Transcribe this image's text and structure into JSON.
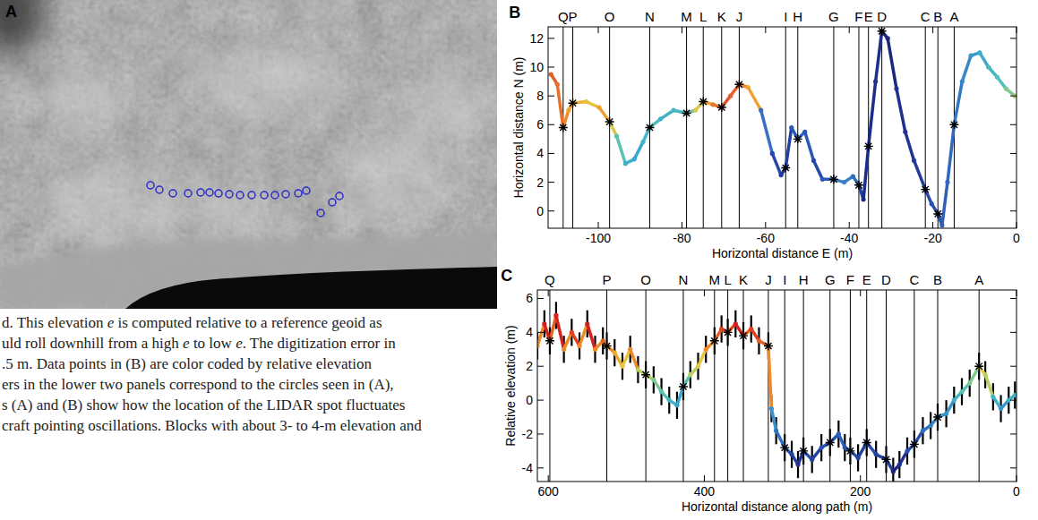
{
  "panel_a": {
    "panel_label": "A"
  },
  "caption": {
    "lines": [
      "d. This elevation e is computed relative to a reference geoid as",
      "uld roll downhill from a high e to low e. The digitization error in",
      ".5 m. Data points in (B) are color coded by relative elevation",
      "ers in the lower two panels correspond to the circles seen in (A),",
      "s (A) and (B) show how the location of the LIDAR spot fluctuates",
      "craft pointing oscillations. Blocks with about 3- to 4-m elevation and"
    ]
  },
  "chart_data": [
    {
      "type": "line",
      "panel_label": "B",
      "x_label": "Horizontal distance E (m)",
      "y_label": "Horizontal distance N (m)",
      "xlim": [
        -112,
        0
      ],
      "ylim": [
        -1.2,
        12.8
      ],
      "xticks": [
        -100,
        -80,
        -60,
        -40,
        -20,
        0
      ],
      "yticks": [
        0,
        2,
        4,
        6,
        8,
        10,
        12
      ],
      "reference_lines": {
        "x": [
          -108.4,
          -106.1,
          -97.3,
          -87.7,
          -78.9,
          -74.9,
          -70.5,
          -66.3,
          -55.2,
          -52.3,
          -43.7,
          -37.7,
          -35.4,
          -32.2,
          -21.8,
          -18.8,
          -14.9
        ],
        "labels": [
          "Q",
          "P",
          "O",
          "N",
          "M",
          "L",
          "K",
          "J",
          "I",
          "H",
          "G",
          "F",
          "E",
          "D",
          "C",
          "B",
          "A"
        ]
      },
      "series": [
        {
          "type": "line",
          "x": [
            -111.3,
            -109.8,
            -108.4,
            -107.1,
            -106.1,
            -102.9,
            -99.8,
            -97.3,
            -95.6,
            -93.5,
            -91.4,
            -89.3,
            -87.7,
            -85.1,
            -82,
            -78.9,
            -76.8,
            -74.9,
            -72.6,
            -70.5,
            -68.4,
            -66.3,
            -64.2,
            -61.1,
            -58.4,
            -56.3,
            -55.2,
            -53.8,
            -52.3,
            -50.6,
            -48.5,
            -46.4,
            -43.7,
            -41.2,
            -39.1,
            -37.7,
            -36.6,
            -35.4,
            -33.7,
            -32.2,
            -30.8,
            -28.7,
            -26.6,
            -24.5,
            -21.8,
            -20.3,
            -18.8,
            -17.8,
            -16.5,
            -14.9,
            -13,
            -10.9,
            -8.8,
            -6.7,
            -4.6,
            -2.5,
            -0.4
          ],
          "values": [
            9.5,
            8.8,
            5.8,
            7.0,
            7.5,
            7.6,
            7.2,
            6.2,
            5.2,
            3.3,
            3.6,
            4.8,
            5.8,
            6.4,
            7.0,
            6.8,
            7.0,
            7.6,
            7.4,
            7.2,
            8.0,
            8.8,
            8.6,
            7.0,
            4.0,
            2.5,
            3.0,
            5.8,
            5.0,
            5.5,
            3.5,
            2.2,
            2.2,
            2.0,
            2.4,
            1.8,
            0.8,
            4.5,
            9.0,
            12.5,
            12.0,
            8.5,
            5.5,
            3.5,
            1.5,
            0.5,
            -0.2,
            -1.0,
            2.0,
            6.0,
            9.0,
            10.8,
            11.0,
            10.0,
            9.3,
            8.5,
            8.0
          ],
          "colors": [
            "#e0602a",
            "#e8702a",
            "#f08a2a",
            "#f0a030",
            "#f0b030",
            "#e8c040",
            "#f0a030",
            "#d8c850",
            "#60c0b0",
            "#40b0c8",
            "#38a8d0",
            "#40b8c8",
            "#48c0c0",
            "#40b0c8",
            "#48b8c0",
            "#60c0b0",
            "#d8c850",
            "#f0a030",
            "#e87828",
            "#e05028",
            "#e86028",
            "#f08a2a",
            "#f0a030",
            "#3a70c0",
            "#2848a8",
            "#2038a0",
            "#2040a8",
            "#2a58b8",
            "#3068c0",
            "#2a58b8",
            "#2848a8",
            "#2a58b8",
            "#3a80c8",
            "#3a80c8",
            "#3070c0",
            "#2040a0",
            "#1c2c8c",
            "#1c2c8c",
            "#20308c",
            "#1c2880",
            "#1c2880",
            "#20308c",
            "#203490",
            "#243c98",
            "#2848a8",
            "#2a50b0",
            "#2a50b0",
            "#3060b8",
            "#3068c0",
            "#3478c4",
            "#3888c8",
            "#3898cc",
            "#40a8c8",
            "#48b8c0",
            "#50c0b8",
            "#80c890",
            "#b0d070"
          ]
        },
        {
          "type": "scatter",
          "marker": "star",
          "color": "#000000",
          "x": [
            -108.4,
            -106.1,
            -97.3,
            -87.7,
            -78.9,
            -74.9,
            -70.5,
            -66.3,
            -55.2,
            -52.3,
            -43.7,
            -37.7,
            -35.4,
            -32.2,
            -21.8,
            -18.8,
            -14.9
          ],
          "values": [
            5.8,
            7.5,
            6.2,
            5.8,
            6.8,
            7.6,
            7.2,
            8.8,
            3.0,
            5.0,
            2.2,
            1.8,
            4.5,
            12.5,
            1.5,
            -0.2,
            6.0
          ]
        }
      ]
    },
    {
      "type": "line",
      "panel_label": "C",
      "x_label": "Horizontal distance along path (m)",
      "y_label": "Relative elevation (m)",
      "xlim": [
        614,
        0
      ],
      "ylim": [
        -4.8,
        6.5
      ],
      "xticks": [
        600,
        400,
        200,
        0
      ],
      "yticks": [
        -4,
        -2,
        0,
        2,
        4,
        6
      ],
      "reference_lines": {
        "x": [
          598,
          525,
          475,
          427,
          387,
          370,
          350,
          318,
          297,
          273,
          239,
          213,
          192,
          167,
          131,
          101,
          48
        ],
        "labels": [
          "Q",
          "P",
          "O",
          "N",
          "M",
          "L",
          "K",
          "J",
          "I",
          "H",
          "G",
          "F",
          "E",
          "D",
          "C",
          "B",
          "A"
        ]
      },
      "series": [
        {
          "type": "line",
          "x": [
            614,
            605,
            598,
            590,
            580,
            570,
            560,
            550,
            540,
            530,
            525,
            515,
            505,
            495,
            485,
            475,
            465,
            455,
            445,
            435,
            427,
            418,
            408,
            398,
            387,
            378,
            370,
            360,
            350,
            340,
            330,
            318,
            314,
            308,
            297,
            288,
            280,
            273,
            262,
            250,
            239,
            228,
            220,
            213,
            203,
            192,
            180,
            167,
            158,
            150,
            140,
            131,
            120,
            110,
            101,
            90,
            80,
            70,
            60,
            48,
            40,
            30,
            20,
            10,
            2
          ],
          "values": [
            3.2,
            4.5,
            3.5,
            5.0,
            3.0,
            4.0,
            3.2,
            4.5,
            3.0,
            3.5,
            3.2,
            2.8,
            2.0,
            3.0,
            1.8,
            1.5,
            1.2,
            0.5,
            0.0,
            -0.3,
            0.8,
            1.5,
            2.0,
            3.0,
            3.5,
            4.2,
            4.0,
            4.5,
            3.8,
            4.2,
            3.5,
            3.2,
            -0.5,
            -1.8,
            -2.8,
            -3.2,
            -3.8,
            -3.0,
            -3.5,
            -2.8,
            -2.5,
            -2.0,
            -2.8,
            -3.0,
            -3.4,
            -2.5,
            -3.2,
            -3.5,
            -4.2,
            -3.8,
            -3.0,
            -2.6,
            -1.8,
            -1.5,
            -1.0,
            -0.8,
            0.0,
            0.5,
            1.0,
            2.0,
            1.5,
            0.2,
            -0.5,
            0.0,
            0.3
          ],
          "errors": [
            0.8,
            0.8,
            0.8,
            0.8,
            0.8,
            0.8,
            0.8,
            0.8,
            0.8,
            0.8,
            0.8,
            0.8,
            0.8,
            0.8,
            0.8,
            0.8,
            0.8,
            0.8,
            0.8,
            0.8,
            0.8,
            0.8,
            0.8,
            0.8,
            0.8,
            0.8,
            0.8,
            0.8,
            0.8,
            0.8,
            0.8,
            0.8,
            0.8,
            0.8,
            0.8,
            0.8,
            0.8,
            0.8,
            0.8,
            0.8,
            0.8,
            0.8,
            0.8,
            0.8,
            0.8,
            0.8,
            0.8,
            0.8,
            0.8,
            0.8,
            0.8,
            0.8,
            0.8,
            0.8,
            0.8,
            0.8,
            0.8,
            0.8,
            0.8,
            0.8,
            0.8,
            0.8,
            0.8,
            0.8,
            0.8
          ],
          "colors": [
            "#f08a28",
            "#d42020",
            "#e86020",
            "#d42020",
            "#f08a28",
            "#e04020",
            "#f08a28",
            "#d42020",
            "#f08a28",
            "#e86020",
            "#f08a28",
            "#f0a830",
            "#e8c840",
            "#f08a28",
            "#b8d060",
            "#b8d060",
            "#80c890",
            "#58c0b0",
            "#40b4c4",
            "#38a4cc",
            "#58c0b0",
            "#b8d060",
            "#e8c840",
            "#f08a28",
            "#e86020",
            "#e04020",
            "#e04020",
            "#d42020",
            "#e86020",
            "#e04020",
            "#e86020",
            "#f08a28",
            "#3894cc",
            "#3070c0",
            "#2850ac",
            "#2440a0",
            "#203094",
            "#2850ac",
            "#2440a0",
            "#2850ac",
            "#2850ac",
            "#2c60b8",
            "#2850ac",
            "#2850ac",
            "#2440a0",
            "#2850ac",
            "#2440a0",
            "#2440a0",
            "#1c2480",
            "#203094",
            "#2850ac",
            "#2850ac",
            "#3070c0",
            "#3480c8",
            "#3894cc",
            "#3894cc",
            "#40b4c4",
            "#58c0b0",
            "#80c890",
            "#e8c840",
            "#b8d060",
            "#40b4c4",
            "#3894cc",
            "#40b4c4",
            "#40b4c4"
          ]
        },
        {
          "type": "scatter",
          "marker": "star",
          "color": "#000000",
          "x": [
            598,
            525,
            475,
            427,
            387,
            370,
            350,
            318,
            297,
            273,
            239,
            213,
            192,
            167,
            131,
            101,
            48
          ],
          "values": [
            3.5,
            3.2,
            1.5,
            0.8,
            3.5,
            4.0,
            3.8,
            3.2,
            -2.8,
            -3.0,
            -2.5,
            -3.0,
            -2.5,
            -3.5,
            -2.6,
            -1.0,
            2.0
          ]
        }
      ]
    }
  ]
}
